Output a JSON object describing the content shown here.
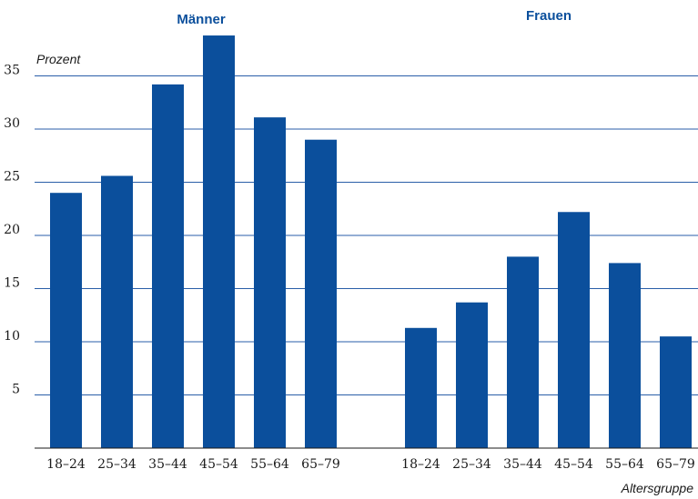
{
  "chart_data": {
    "type": "bar",
    "ylabel": "Prozent",
    "xlabel": "Altersgruppe",
    "ylim": [
      0,
      40
    ],
    "yticks": [
      5,
      10,
      15,
      20,
      25,
      30,
      35
    ],
    "grid": true,
    "bar_color": "#0b4f9c",
    "groups": [
      {
        "name": "Männer",
        "categories": [
          "18–24",
          "25–34",
          "35–44",
          "45–54",
          "55–64",
          "65–79"
        ],
        "values": [
          24.0,
          25.6,
          34.2,
          38.8,
          31.1,
          29.0
        ]
      },
      {
        "name": "Frauen",
        "categories": [
          "18–24",
          "25–34",
          "35–44",
          "45–54",
          "55–64",
          "65–79"
        ],
        "values": [
          11.3,
          13.7,
          18.0,
          22.2,
          17.4,
          10.5
        ]
      }
    ]
  }
}
